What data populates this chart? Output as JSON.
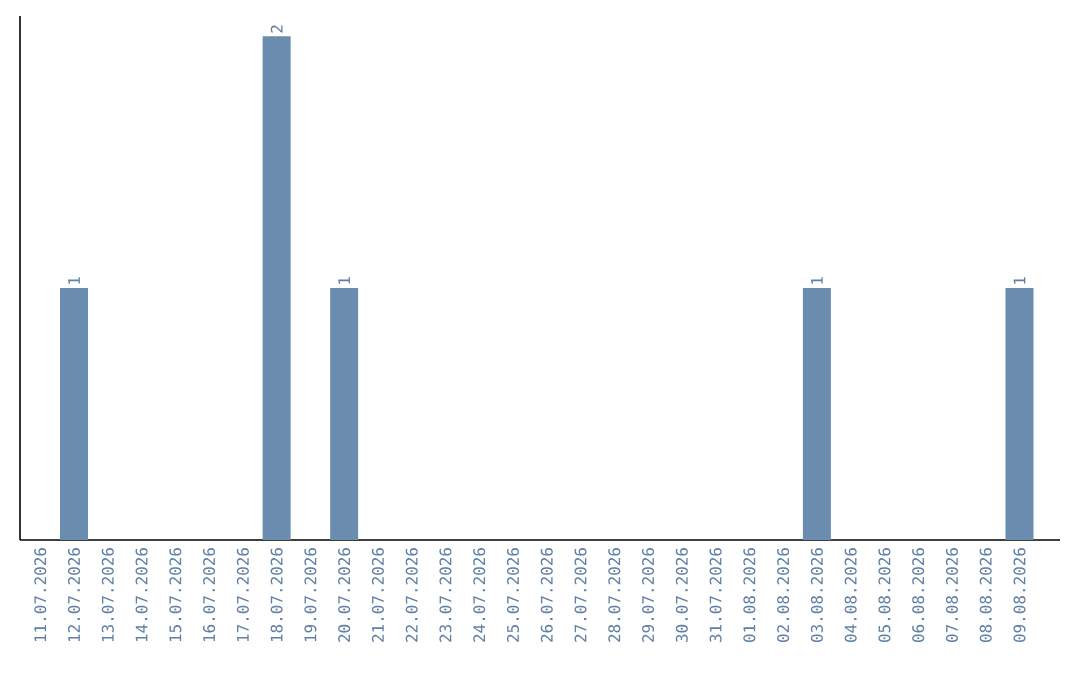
{
  "chart_data": {
    "type": "bar",
    "categories": [
      "11.07.2026",
      "12.07.2026",
      "13.07.2026",
      "14.07.2026",
      "15.07.2026",
      "16.07.2026",
      "17.07.2026",
      "18.07.2026",
      "19.07.2026",
      "20.07.2026",
      "21.07.2026",
      "22.07.2026",
      "23.07.2026",
      "24.07.2026",
      "25.07.2026",
      "26.07.2026",
      "27.07.2026",
      "28.07.2026",
      "29.07.2026",
      "30.07.2026",
      "31.07.2026",
      "01.08.2026",
      "02.08.2026",
      "03.08.2026",
      "04.08.2026",
      "05.08.2026",
      "06.08.2026",
      "07.08.2026",
      "08.08.2026",
      "09.08.2026"
    ],
    "values": [
      0,
      1,
      0,
      0,
      0,
      0,
      0,
      2,
      0,
      1,
      0,
      0,
      0,
      0,
      0,
      0,
      0,
      0,
      0,
      0,
      0,
      0,
      0,
      1,
      0,
      0,
      0,
      0,
      0,
      1
    ],
    "value_labels": [
      null,
      "1",
      null,
      null,
      null,
      null,
      null,
      "2",
      null,
      "1",
      null,
      null,
      null,
      null,
      null,
      null,
      null,
      null,
      null,
      null,
      null,
      null,
      null,
      "1",
      null,
      null,
      null,
      null,
      null,
      "1"
    ],
    "color": "#6a8caf",
    "tick_labels": "x"
  }
}
